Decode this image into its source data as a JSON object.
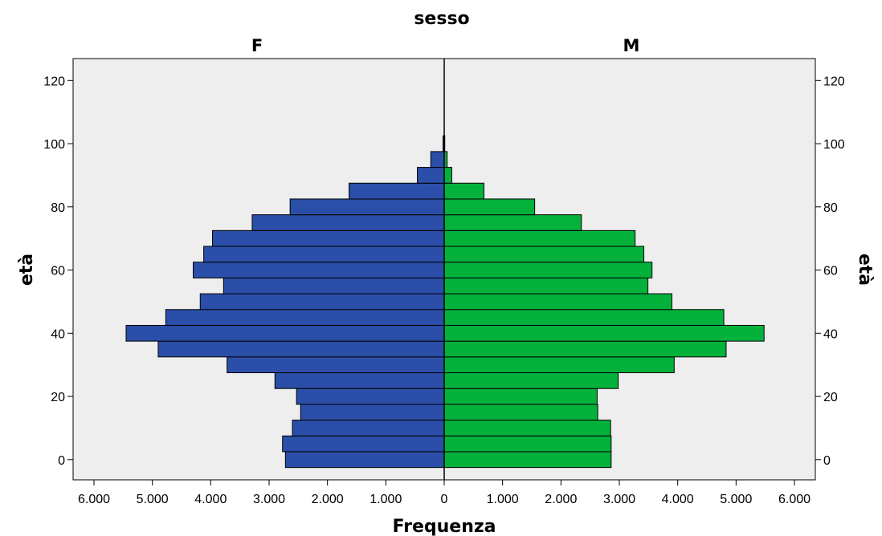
{
  "chart_data": {
    "type": "bar",
    "orientation": "horizontal-population-pyramid",
    "title": "sesso",
    "xlabel": "Frequenza",
    "ylabel": "età",
    "ylabel_right": "età",
    "ylim": [
      -7,
      126
    ],
    "xlim": [
      0,
      6000
    ],
    "grid": false,
    "legend": "none",
    "y_ticks": [
      0,
      20,
      40,
      60,
      80,
      100,
      120
    ],
    "y_tick_labels": [
      "0",
      "20",
      "40",
      "60",
      "80",
      "100",
      "120"
    ],
    "x_tick_labels_left": [
      "6.000",
      "5.000",
      "4.000",
      "3.000",
      "2.000",
      "1.000"
    ],
    "x_tick_labels_right": [
      "0",
      "1.000",
      "2.000",
      "3.000",
      "4.000",
      "5.000",
      "6.000"
    ],
    "bin_width": 5,
    "bin_starts": [
      0,
      5,
      10,
      15,
      20,
      25,
      30,
      35,
      40,
      45,
      50,
      55,
      60,
      65,
      70,
      75,
      80,
      85,
      90,
      95,
      100
    ],
    "series": [
      {
        "name": "F",
        "color": "#2B4FA8",
        "values": [
          2720,
          2770,
          2600,
          2460,
          2530,
          2900,
          3720,
          4900,
          5450,
          4770,
          4180,
          3780,
          4300,
          4120,
          3970,
          3290,
          2640,
          1630,
          460,
          230,
          20
        ]
      },
      {
        "name": "M",
        "color": "#03B13B",
        "values": [
          2860,
          2860,
          2850,
          2630,
          2620,
          2980,
          3940,
          4830,
          5480,
          4790,
          3900,
          3490,
          3560,
          3420,
          3270,
          2350,
          1550,
          680,
          130,
          50,
          10
        ]
      }
    ],
    "colors": {
      "plot_background": "#EEEEEE",
      "outline": "#000000"
    }
  }
}
